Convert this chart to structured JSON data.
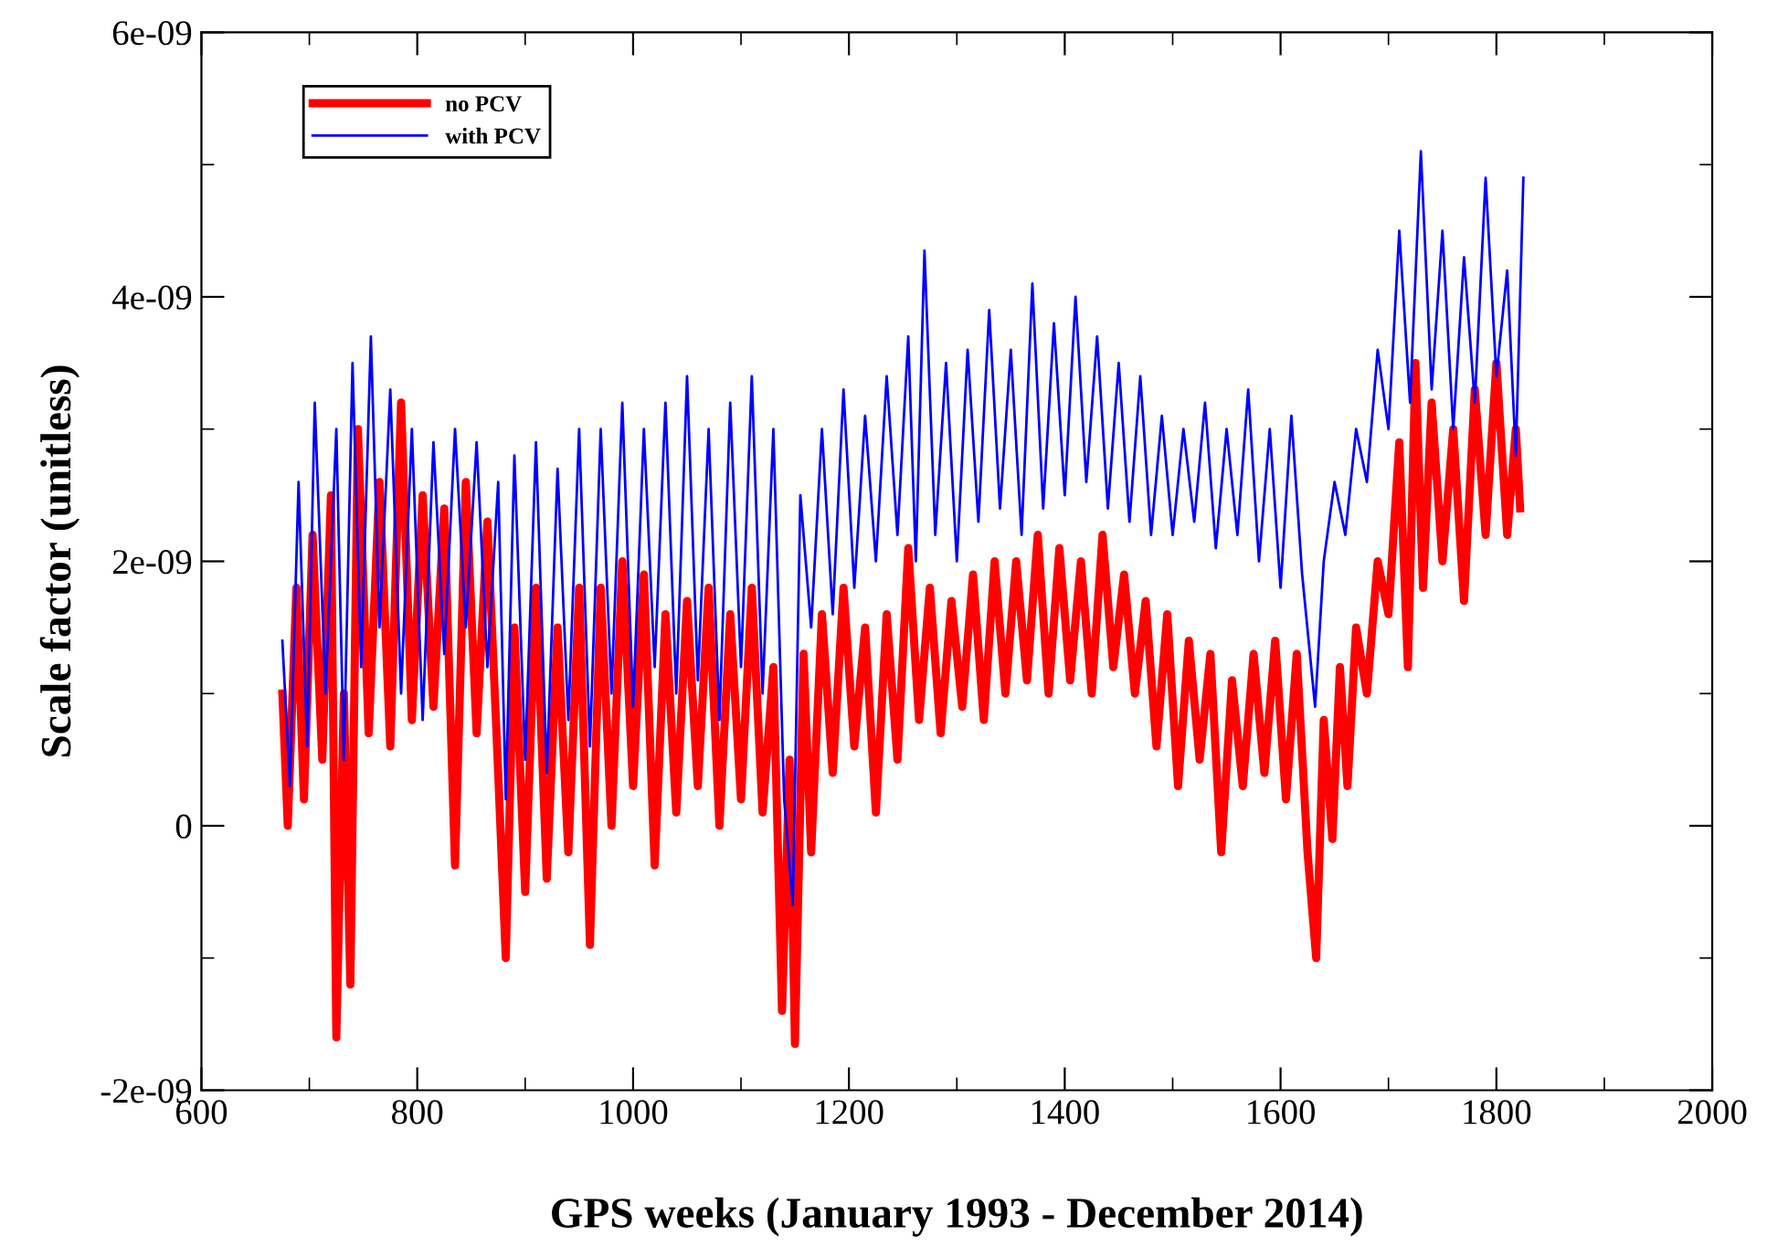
{
  "chart_data": {
    "type": "line",
    "xlabel": "GPS weeks (January 1993 - December 2014)",
    "ylabel": "Scale factor (unitless)",
    "xlim": [
      600,
      2000
    ],
    "xticks": [
      600,
      800,
      1000,
      1200,
      1400,
      1600,
      1800,
      2000
    ],
    "ylim": [
      -2e-09,
      6e-09
    ],
    "yticks": [
      {
        "value": -2e-09,
        "label": "-2e-09"
      },
      {
        "value": 0,
        "label": "0"
      },
      {
        "value": 2e-09,
        "label": "2e-09"
      },
      {
        "value": 4e-09,
        "label": "4e-09"
      },
      {
        "value": 6e-09,
        "label": "6e-09"
      }
    ],
    "grid": false,
    "legend": "top left",
    "marker": "none",
    "line_style": "solid",
    "series": [
      {
        "name": "no PCV",
        "color": "#ff0000",
        "x": [
          675,
          680,
          688,
          695,
          703,
          712,
          720,
          725,
          732,
          738,
          745,
          755,
          765,
          775,
          785,
          795,
          805,
          815,
          825,
          835,
          845,
          855,
          865,
          875,
          882,
          890,
          900,
          910,
          920,
          930,
          940,
          950,
          960,
          970,
          980,
          990,
          1000,
          1010,
          1020,
          1030,
          1040,
          1050,
          1060,
          1070,
          1080,
          1090,
          1100,
          1110,
          1120,
          1130,
          1138,
          1145,
          1150,
          1158,
          1165,
          1175,
          1185,
          1195,
          1205,
          1215,
          1225,
          1235,
          1245,
          1255,
          1265,
          1275,
          1285,
          1295,
          1305,
          1315,
          1325,
          1335,
          1345,
          1355,
          1365,
          1375,
          1385,
          1395,
          1405,
          1415,
          1425,
          1435,
          1445,
          1455,
          1465,
          1475,
          1485,
          1495,
          1505,
          1515,
          1525,
          1535,
          1545,
          1555,
          1565,
          1575,
          1585,
          1595,
          1605,
          1615,
          1625,
          1633,
          1640,
          1648,
          1655,
          1662,
          1670,
          1680,
          1690,
          1700,
          1710,
          1718,
          1725,
          1732,
          1740,
          1750,
          1760,
          1770,
          1780,
          1790,
          1800,
          1810,
          1818,
          1822
        ],
        "values": [
          1e-09,
          0.0,
          1.8e-09,
          2e-10,
          2.2e-09,
          5e-10,
          2.5e-09,
          -1.6e-09,
          1e-09,
          -1.2e-09,
          3e-09,
          7e-10,
          2.6e-09,
          6e-10,
          3.2e-09,
          8e-10,
          2.5e-09,
          9e-10,
          2.4e-09,
          -3e-10,
          2.6e-09,
          7e-10,
          2.3e-09,
          4e-10,
          -1e-09,
          1.5e-09,
          -5e-10,
          1.8e-09,
          -4e-10,
          1.5e-09,
          -2e-10,
          1.8e-09,
          -9e-10,
          1.8e-09,
          0.0,
          2e-09,
          3e-10,
          1.9e-09,
          -3e-10,
          1.6e-09,
          1e-10,
          1.7e-09,
          3e-10,
          1.8e-09,
          0.0,
          1.6e-09,
          2e-10,
          1.8e-09,
          1e-10,
          1.2e-09,
          -1.4e-09,
          5e-10,
          -1.65e-09,
          1.3e-09,
          -2e-10,
          1.6e-09,
          4e-10,
          1.8e-09,
          6e-10,
          1.5e-09,
          1e-10,
          1.6e-09,
          5e-10,
          2.1e-09,
          8e-10,
          1.8e-09,
          7e-10,
          1.7e-09,
          9e-10,
          1.9e-09,
          8e-10,
          2e-09,
          1e-09,
          2e-09,
          1.1e-09,
          2.2e-09,
          1e-09,
          2.1e-09,
          1.1e-09,
          2e-09,
          1e-09,
          2.2e-09,
          1.2e-09,
          1.9e-09,
          1e-09,
          1.7e-09,
          6e-10,
          1.6e-09,
          3e-10,
          1.4e-09,
          5e-10,
          1.3e-09,
          -2e-10,
          1.1e-09,
          3e-10,
          1.3e-09,
          4e-10,
          1.4e-09,
          2e-10,
          1.3e-09,
          -2e-10,
          -1e-09,
          8e-10,
          -1e-10,
          1.2e-09,
          3e-10,
          1.5e-09,
          1e-09,
          2e-09,
          1.6e-09,
          2.9e-09,
          1.2e-09,
          3.5e-09,
          1.8e-09,
          3.2e-09,
          2e-09,
          3e-09,
          1.7e-09,
          3.3e-09,
          2.2e-09,
          3.5e-09,
          2.2e-09,
          3e-09,
          2.4e-09
        ]
      },
      {
        "name": "with PCV",
        "color": "#0000ff",
        "x": [
          675,
          682,
          690,
          698,
          705,
          715,
          725,
          732,
          740,
          748,
          757,
          765,
          775,
          785,
          795,
          805,
          815,
          825,
          835,
          845,
          855,
          865,
          875,
          882,
          890,
          900,
          910,
          920,
          930,
          940,
          950,
          960,
          970,
          980,
          990,
          1000,
          1010,
          1020,
          1030,
          1040,
          1050,
          1060,
          1070,
          1080,
          1090,
          1100,
          1110,
          1120,
          1130,
          1140,
          1148,
          1155,
          1165,
          1175,
          1185,
          1195,
          1205,
          1215,
          1225,
          1235,
          1245,
          1255,
          1262,
          1270,
          1280,
          1290,
          1300,
          1310,
          1320,
          1330,
          1340,
          1350,
          1360,
          1370,
          1380,
          1390,
          1400,
          1410,
          1420,
          1430,
          1440,
          1450,
          1460,
          1470,
          1480,
          1490,
          1500,
          1510,
          1520,
          1530,
          1540,
          1550,
          1560,
          1570,
          1580,
          1590,
          1600,
          1610,
          1620,
          1632,
          1640,
          1650,
          1660,
          1670,
          1680,
          1690,
          1700,
          1710,
          1720,
          1730,
          1740,
          1750,
          1760,
          1770,
          1780,
          1790,
          1800,
          1810,
          1818,
          1825
        ],
        "values": [
          1.4e-09,
          3e-10,
          2.6e-09,
          6e-10,
          3.2e-09,
          1e-09,
          3e-09,
          5e-10,
          3.5e-09,
          1.2e-09,
          3.7e-09,
          1.5e-09,
          3.3e-09,
          1e-09,
          3e-09,
          8e-10,
          2.9e-09,
          1.3e-09,
          3e-09,
          1.5e-09,
          2.9e-09,
          1.2e-09,
          2.6e-09,
          2e-10,
          2.8e-09,
          5e-10,
          2.9e-09,
          4e-10,
          2.7e-09,
          8e-10,
          3e-09,
          6e-10,
          3e-09,
          1e-09,
          3.2e-09,
          9e-10,
          3e-09,
          1.2e-09,
          3.2e-09,
          1e-09,
          3.4e-09,
          1.1e-09,
          3e-09,
          8e-10,
          3.2e-09,
          1.2e-09,
          3.4e-09,
          1e-09,
          3e-09,
          2e-10,
          -6e-10,
          2.5e-09,
          1.5e-09,
          3e-09,
          1.6e-09,
          3.3e-09,
          1.8e-09,
          3.1e-09,
          2e-09,
          3.4e-09,
          2.2e-09,
          3.7e-09,
          2e-09,
          4.35e-09,
          2.2e-09,
          3.5e-09,
          2e-09,
          3.6e-09,
          2.3e-09,
          3.9e-09,
          2.4e-09,
          3.6e-09,
          2.2e-09,
          4.1e-09,
          2.4e-09,
          3.8e-09,
          2.5e-09,
          4e-09,
          2.6e-09,
          3.7e-09,
          2.4e-09,
          3.5e-09,
          2.3e-09,
          3.4e-09,
          2.2e-09,
          3.1e-09,
          2.2e-09,
          3e-09,
          2.3e-09,
          3.2e-09,
          2.1e-09,
          3e-09,
          2.2e-09,
          3.3e-09,
          2e-09,
          3e-09,
          1.8e-09,
          3.1e-09,
          1.9e-09,
          9e-10,
          2e-09,
          2.6e-09,
          2.2e-09,
          3e-09,
          2.6e-09,
          3.6e-09,
          3e-09,
          4.5e-09,
          3.2e-09,
          5.1e-09,
          3.3e-09,
          4.5e-09,
          3e-09,
          4.3e-09,
          3.2e-09,
          4.9e-09,
          3.4e-09,
          4.2e-09,
          2.8e-09,
          4.9e-09
        ]
      }
    ]
  }
}
